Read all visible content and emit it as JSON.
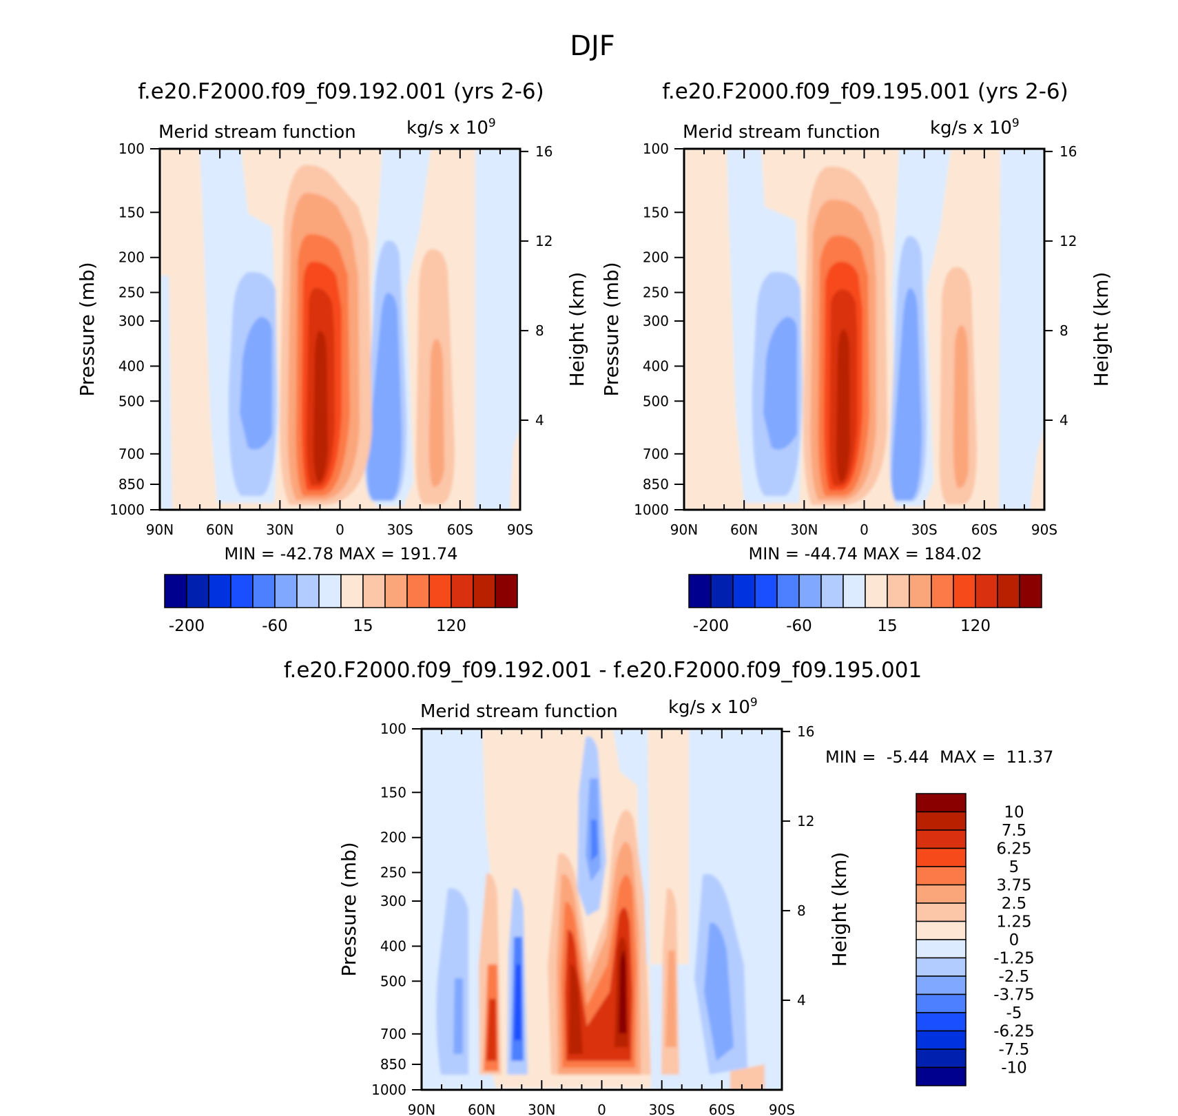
{
  "figure": {
    "title": "DJF"
  },
  "panels": {
    "left": {
      "run_title": "f.e20.F2000.f09_f09.192.001 (yrs 2-6)",
      "var_title": "Merid stream function",
      "units_base": "kg/s x 10",
      "units_exp": "9",
      "ylabel": "Pressure (mb)",
      "ylabel_right": "Height (km)",
      "minmax": "MIN = -42.78 MAX = 191.74"
    },
    "right": {
      "run_title": "f.e20.F2000.f09_f09.195.001 (yrs 2-6)",
      "var_title": "Merid stream function",
      "units_base": "kg/s x 10",
      "units_exp": "9",
      "ylabel": "Pressure (mb)",
      "ylabel_right": "Height (km)",
      "minmax": "MIN = -44.74 MAX = 184.02"
    },
    "diff": {
      "run_title": "f.e20.F2000.f09_f09.192.001 - f.e20.F2000.f09_f09.195.001",
      "var_title": "Merid stream function",
      "units_base": "kg/s x 10",
      "units_exp": "9",
      "ylabel": "Pressure (mb)",
      "ylabel_right": "Height (km)",
      "minmax": "MIN =  -5.44  MAX =  11.37"
    }
  },
  "colorbars": {
    "main_colors": [
      "#00008f",
      "#0020b0",
      "#0033e0",
      "#1a4fff",
      "#4d80ff",
      "#80a8ff",
      "#b3ccff",
      "#dcebff",
      "#fde7d4",
      "#fcc6a8",
      "#fba57a",
      "#fb7a47",
      "#f74a1b",
      "#d93010",
      "#b82000",
      "#8a0000"
    ],
    "main_labels": [
      "-200",
      "-60",
      "15",
      "120"
    ],
    "diff_colors": [
      "#00008f",
      "#0020b0",
      "#0033e0",
      "#1a4fff",
      "#4d80ff",
      "#80a8ff",
      "#b3ccff",
      "#dcebff",
      "#fde7d4",
      "#fcc6a8",
      "#fba57a",
      "#fb7a47",
      "#f74a1b",
      "#d93010",
      "#b82000",
      "#8a0000"
    ],
    "diff_labels": [
      "10",
      "7.5",
      "6.25",
      "5",
      "3.75",
      "2.5",
      "1.25",
      "0",
      "-1.25",
      "-2.5",
      "-3.75",
      "-5",
      "-6.25",
      "-7.5",
      "-10"
    ]
  },
  "chart_data": [
    {
      "type": "heatmap",
      "title": "f.e20.F2000.f09_f09.192.001 (yrs 2-6)",
      "subtitle": "Merid stream function",
      "units": "kg/s x 10^9",
      "xlabel": "",
      "ylabel": "Pressure (mb)",
      "ylabel_right": "Height (km)",
      "x_ticks": [
        "90N",
        "60N",
        "30N",
        "0",
        "30S",
        "60S",
        "90S"
      ],
      "x_range": [
        90,
        -90
      ],
      "y_ticks": [
        100,
        150,
        200,
        250,
        300,
        400,
        500,
        700,
        850,
        1000
      ],
      "y_scale": "log",
      "y_range": [
        100,
        1000
      ],
      "y_right_ticks": [
        16,
        12,
        8,
        4
      ],
      "min": -42.78,
      "max": 191.74,
      "contour_levels": [
        -200,
        -60,
        15,
        120
      ],
      "features": [
        {
          "lat": -12,
          "p_top": 110,
          "value": 191.74,
          "sign": "positive"
        },
        {
          "lat": 38,
          "p_top": 230,
          "value": -40,
          "sign": "negative"
        },
        {
          "lat": -25,
          "p_top": 180,
          "value": -42.78,
          "sign": "negative"
        },
        {
          "lat": -48,
          "p_top": 230,
          "value": 60,
          "sign": "positive"
        }
      ]
    },
    {
      "type": "heatmap",
      "title": "f.e20.F2000.f09_f09.195.001 (yrs 2-6)",
      "subtitle": "Merid stream function",
      "units": "kg/s x 10^9",
      "xlabel": "",
      "ylabel": "Pressure (mb)",
      "ylabel_right": "Height (km)",
      "x_ticks": [
        "90N",
        "60N",
        "30N",
        "0",
        "30S",
        "60S",
        "90S"
      ],
      "x_range": [
        90,
        -90
      ],
      "y_ticks": [
        100,
        150,
        200,
        250,
        300,
        400,
        500,
        700,
        850,
        1000
      ],
      "y_scale": "log",
      "y_range": [
        100,
        1000
      ],
      "y_right_ticks": [
        16,
        12,
        8,
        4
      ],
      "min": -44.74,
      "max": 184.02,
      "contour_levels": [
        -200,
        -60,
        15,
        120
      ],
      "features": [
        {
          "lat": -12,
          "p_top": 110,
          "value": 184.02,
          "sign": "positive"
        },
        {
          "lat": 38,
          "p_top": 230,
          "value": -42,
          "sign": "negative"
        },
        {
          "lat": -25,
          "p_top": 180,
          "value": -44.74,
          "sign": "negative"
        },
        {
          "lat": -48,
          "p_top": 230,
          "value": 55,
          "sign": "positive"
        }
      ]
    },
    {
      "type": "heatmap",
      "title": "f.e20.F2000.f09_f09.192.001 - f.e20.F2000.f09_f09.195.001",
      "subtitle": "Merid stream function",
      "units": "kg/s x 10^9",
      "xlabel": "",
      "ylabel": "Pressure (mb)",
      "ylabel_right": "Height (km)",
      "x_ticks": [
        "90N",
        "60N",
        "30N",
        "0",
        "30S",
        "60S",
        "90S"
      ],
      "x_range": [
        90,
        -90
      ],
      "y_ticks": [
        100,
        150,
        200,
        250,
        300,
        400,
        500,
        700,
        850,
        1000
      ],
      "y_scale": "log",
      "y_range": [
        100,
        1000
      ],
      "y_right_ticks": [
        16,
        12,
        8,
        4
      ],
      "min": -5.44,
      "max": 11.37,
      "contour_levels": [
        -10,
        -7.5,
        -6.25,
        -5,
        -3.75,
        -2.5,
        -1.25,
        0,
        1.25,
        2.5,
        3.75,
        5,
        6.25,
        7.5,
        10
      ],
      "features": [
        {
          "lat": -8,
          "p_top": 240,
          "value": 11.37,
          "sign": "positive"
        },
        {
          "lat": 16,
          "p_top": 220,
          "value": 9,
          "sign": "positive"
        },
        {
          "lat": 3,
          "p_top": 110,
          "value": -5.44,
          "sign": "negative"
        },
        {
          "lat": 57,
          "p_top": 270,
          "value": 8,
          "sign": "positive"
        },
        {
          "lat": 43,
          "p_top": 280,
          "value": -5,
          "sign": "negative"
        },
        {
          "lat": -52,
          "p_top": 220,
          "value": -3.5,
          "sign": "negative"
        },
        {
          "lat": -33,
          "p_top": 210,
          "value": 3,
          "sign": "positive"
        }
      ]
    }
  ]
}
